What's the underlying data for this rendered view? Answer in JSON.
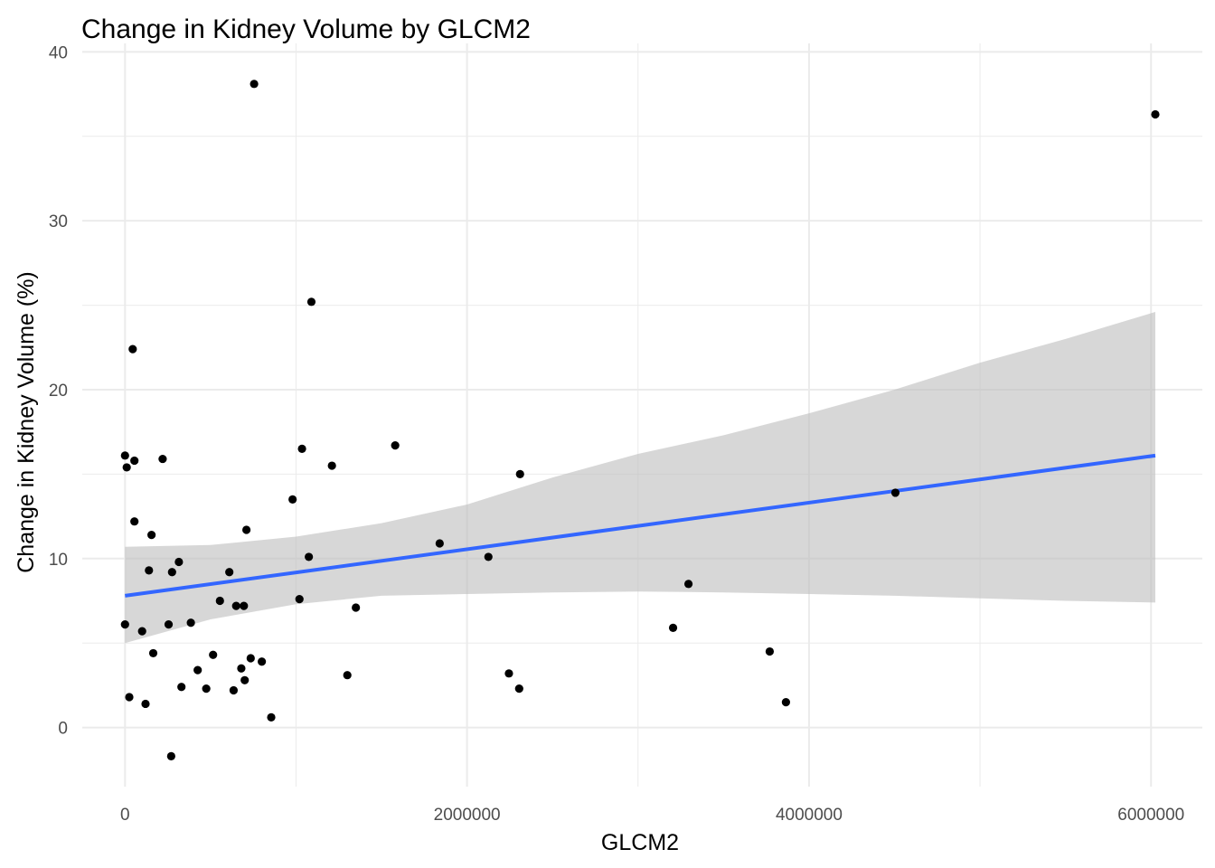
{
  "chart_data": {
    "type": "scatter",
    "title": "Change in Kidney Volume by GLCM2",
    "xlabel": "GLCM2",
    "ylabel": "Change in Kidney Volume (%)",
    "xlim": [
      -250000,
      6300000
    ],
    "ylim": [
      -3.5,
      40.5
    ],
    "x_ticks": [
      0,
      2000000,
      4000000,
      6000000
    ],
    "x_tick_labels": [
      "0",
      "2000000",
      "4000000",
      "6000000"
    ],
    "x_minor_ticks": [
      1000000,
      3000000,
      5000000
    ],
    "y_ticks": [
      0,
      10,
      20,
      30,
      40
    ],
    "y_tick_labels": [
      "0",
      "10",
      "20",
      "30",
      "40"
    ],
    "y_minor_ticks": [
      5,
      15,
      25,
      35
    ],
    "grid": true,
    "colors": {
      "points": "#000000",
      "fit_line": "#3366FF",
      "ribbon": "#bdbdbd",
      "grid": "#ebebeb"
    },
    "points": [
      {
        "x": 0,
        "y": 16.1
      },
      {
        "x": 10000,
        "y": 15.4
      },
      {
        "x": 0,
        "y": 6.1
      },
      {
        "x": 25000,
        "y": 1.8
      },
      {
        "x": 45000,
        "y": 22.4
      },
      {
        "x": 55000,
        "y": 15.8
      },
      {
        "x": 55000,
        "y": 12.2
      },
      {
        "x": 100000,
        "y": 5.7
      },
      {
        "x": 120000,
        "y": 1.4
      },
      {
        "x": 140000,
        "y": 9.3
      },
      {
        "x": 155000,
        "y": 11.4
      },
      {
        "x": 165000,
        "y": 4.4
      },
      {
        "x": 220000,
        "y": 15.9
      },
      {
        "x": 255000,
        "y": 6.1
      },
      {
        "x": 275000,
        "y": 9.2
      },
      {
        "x": 270000,
        "y": -1.7
      },
      {
        "x": 315000,
        "y": 9.8
      },
      {
        "x": 330000,
        "y": 2.4
      },
      {
        "x": 385000,
        "y": 6.2
      },
      {
        "x": 425000,
        "y": 3.4
      },
      {
        "x": 475000,
        "y": 2.3
      },
      {
        "x": 515000,
        "y": 4.3
      },
      {
        "x": 555000,
        "y": 7.5
      },
      {
        "x": 610000,
        "y": 9.2
      },
      {
        "x": 635000,
        "y": 2.2
      },
      {
        "x": 650000,
        "y": 7.2
      },
      {
        "x": 680000,
        "y": 3.5
      },
      {
        "x": 695000,
        "y": 7.2
      },
      {
        "x": 700000,
        "y": 2.8
      },
      {
        "x": 710000,
        "y": 11.7
      },
      {
        "x": 735000,
        "y": 4.1
      },
      {
        "x": 755000,
        "y": 38.1
      },
      {
        "x": 800000,
        "y": 3.9
      },
      {
        "x": 855000,
        "y": 0.6
      },
      {
        "x": 980000,
        "y": 13.5
      },
      {
        "x": 1020000,
        "y": 7.6
      },
      {
        "x": 1035000,
        "y": 16.5
      },
      {
        "x": 1075000,
        "y": 10.1
      },
      {
        "x": 1090000,
        "y": 25.2
      },
      {
        "x": 1210000,
        "y": 15.5
      },
      {
        "x": 1300000,
        "y": 3.1
      },
      {
        "x": 1350000,
        "y": 7.1
      },
      {
        "x": 1580000,
        "y": 16.7
      },
      {
        "x": 1840000,
        "y": 10.9
      },
      {
        "x": 2125000,
        "y": 10.1
      },
      {
        "x": 2245000,
        "y": 3.2
      },
      {
        "x": 2305000,
        "y": 2.3
      },
      {
        "x": 2310000,
        "y": 15.0
      },
      {
        "x": 3205000,
        "y": 5.9
      },
      {
        "x": 3295000,
        "y": 8.5
      },
      {
        "x": 3770000,
        "y": 4.5
      },
      {
        "x": 3865000,
        "y": 1.5
      },
      {
        "x": 4505000,
        "y": 13.9
      },
      {
        "x": 6025000,
        "y": 36.3
      }
    ],
    "fit": {
      "method": "linear",
      "x": [
        0,
        6025000
      ],
      "y": [
        7.8,
        16.1
      ]
    },
    "ribbon": {
      "x": [
        0,
        500000,
        1000000,
        1500000,
        2000000,
        2500000,
        3000000,
        3500000,
        4000000,
        4500000,
        5000000,
        5500000,
        6025000
      ],
      "lower": [
        5.0,
        6.4,
        7.3,
        7.8,
        7.9,
        8.0,
        8.05,
        8.0,
        7.9,
        7.8,
        7.65,
        7.5,
        7.4
      ],
      "upper": [
        10.7,
        10.8,
        11.3,
        12.1,
        13.2,
        14.8,
        16.2,
        17.3,
        18.6,
        20.0,
        21.6,
        23.0,
        24.6
      ]
    }
  }
}
